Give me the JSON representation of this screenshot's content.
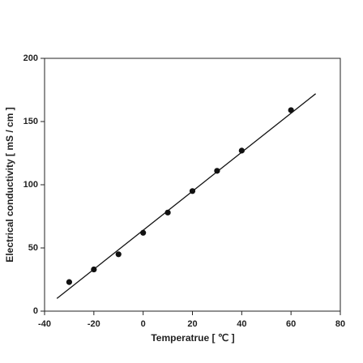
{
  "chart_data": {
    "type": "scatter",
    "xlabel": "Temperatrue [ ℃ ]",
    "ylabel": "Electrical conductivity [ mS / cm ]",
    "xlim": [
      -40,
      80
    ],
    "xticks": [
      -40,
      -20,
      0,
      20,
      40,
      60,
      80
    ],
    "ylim": [
      0,
      200
    ],
    "yticks": [
      0,
      50,
      100,
      150,
      200
    ],
    "series": [
      {
        "mode": "markers",
        "color": "#111111",
        "x": [
          -30,
          -20,
          -10,
          0,
          10,
          20,
          30,
          40,
          60
        ],
        "values": [
          23,
          33,
          45,
          62,
          78,
          95,
          111,
          127,
          159
        ]
      },
      {
        "mode": "lines",
        "color": "#111111",
        "x": [
          -35,
          70
        ],
        "values": [
          10,
          172
        ]
      }
    ]
  }
}
